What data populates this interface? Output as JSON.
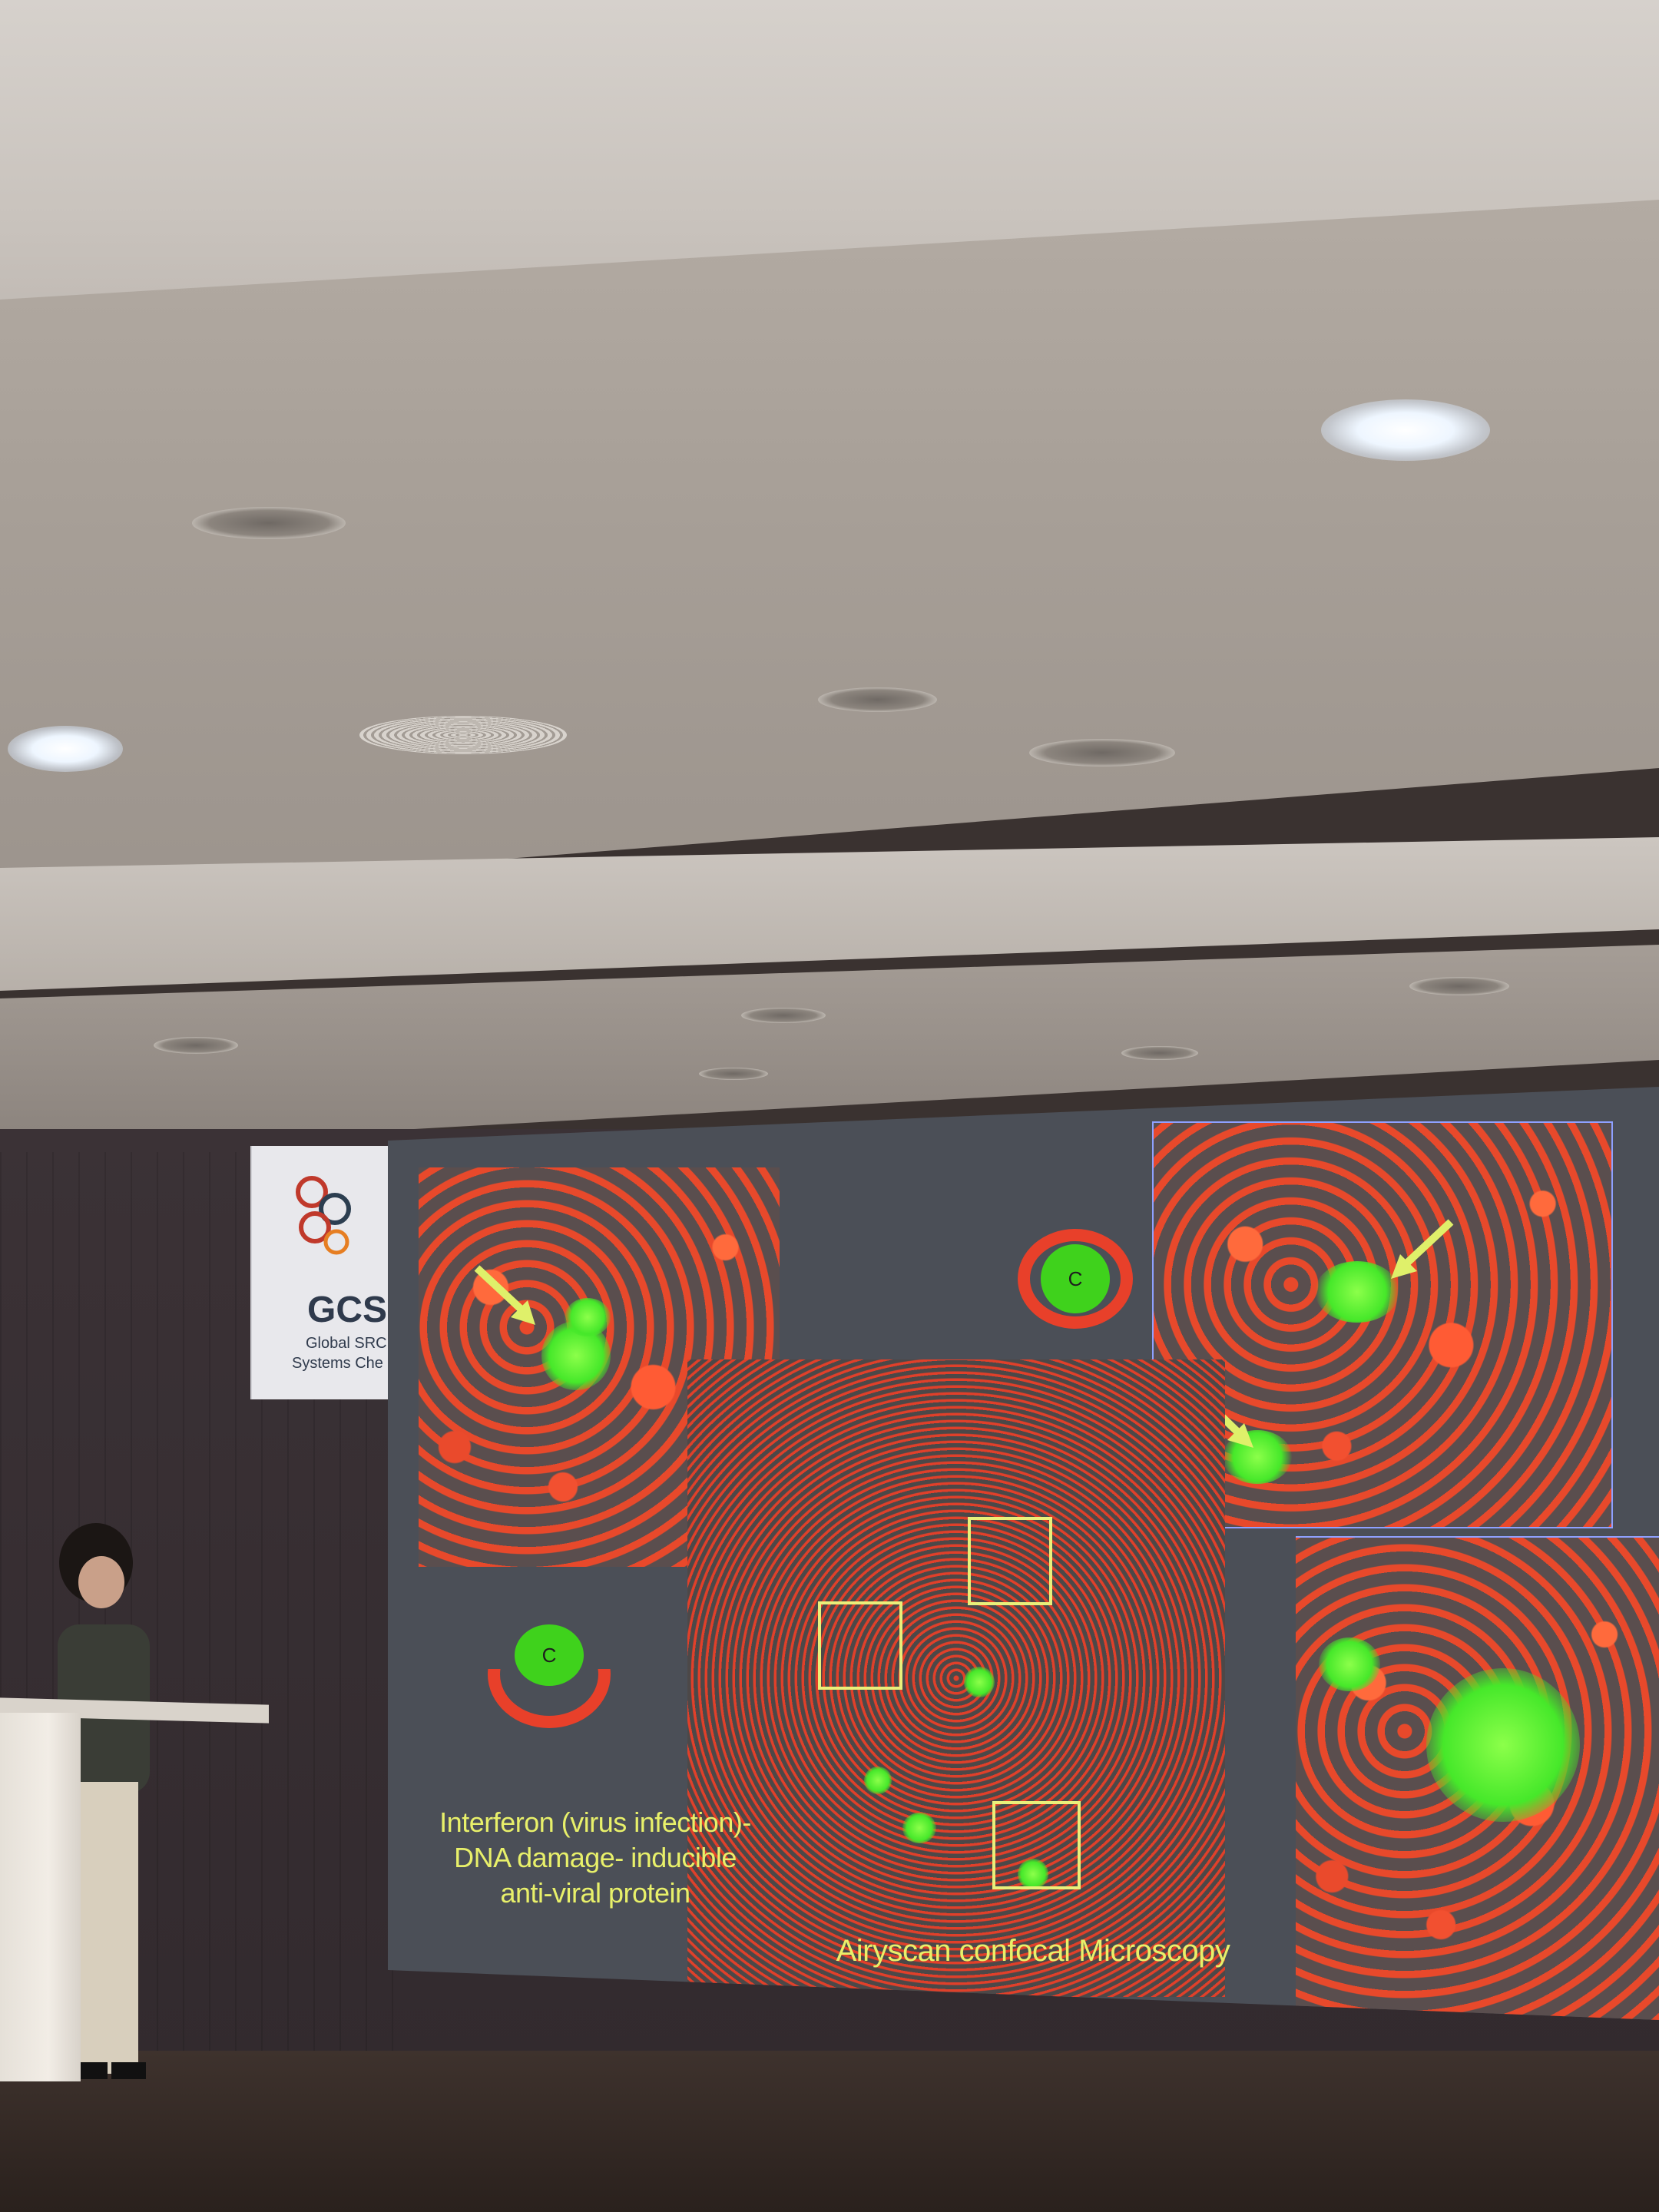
{
  "banner": {
    "logo_text": "GCS",
    "line1": "Global SRC",
    "line2": "Systems Che"
  },
  "slide": {
    "cell_label_top": "C",
    "cell_label_bottom": "C",
    "caption_left": [
      "Interferon (virus infection)-",
      "DNA damage- inducible",
      "anti-viral protein"
    ],
    "caption_bottom": "Airyscan confocal Microscopy"
  },
  "colors": {
    "red_channel": "#ff5a34",
    "green_channel": "#4ce82a",
    "annotation_yellow": "#e9f07a"
  }
}
